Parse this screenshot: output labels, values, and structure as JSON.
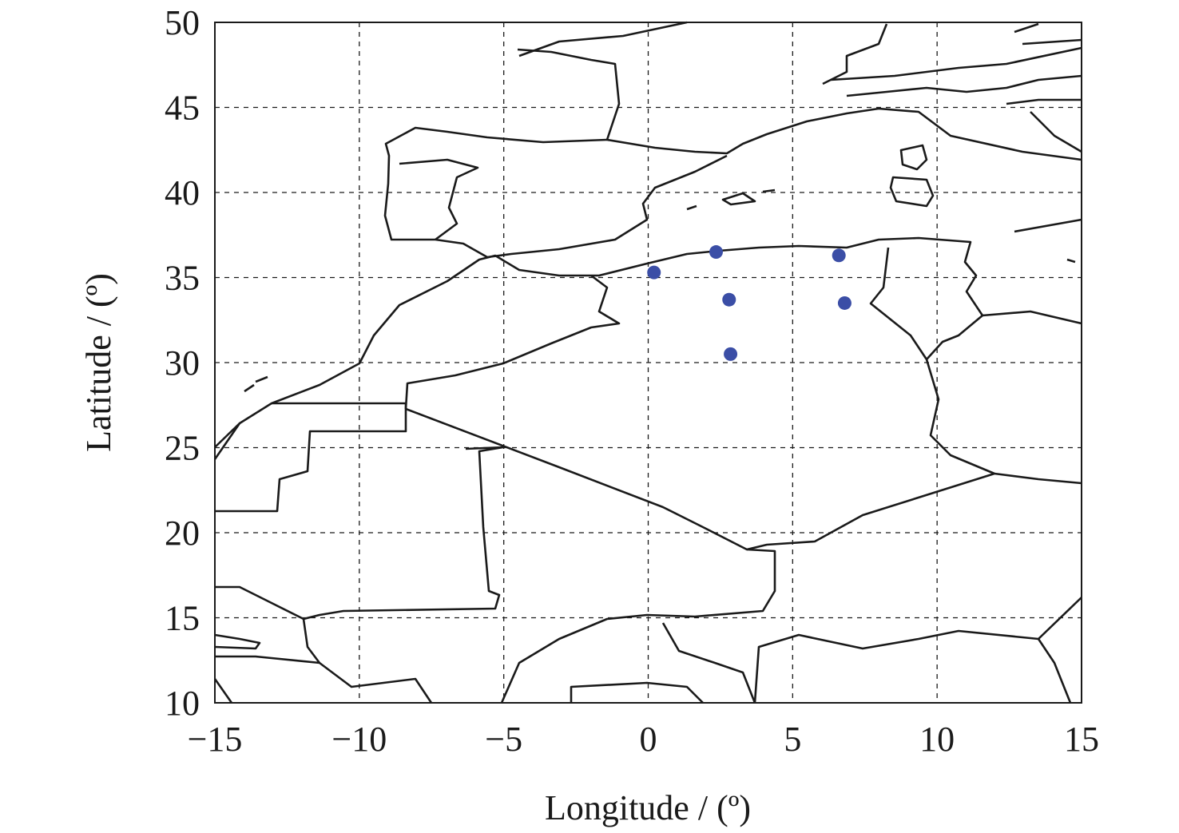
{
  "chart_data": {
    "type": "scatter",
    "xlabel": "Longitude / (º)",
    "ylabel": "Latitude / (º)",
    "xlim": [
      -15,
      15
    ],
    "ylim": [
      10,
      50
    ],
    "xticks": [
      "−15",
      "−10",
      "−5",
      "0",
      "5",
      "10",
      "15"
    ],
    "xtick_values": [
      -15,
      -10,
      -5,
      0,
      5,
      10,
      15
    ],
    "yticks": [
      "10",
      "15",
      "20",
      "25",
      "30",
      "35",
      "40",
      "45",
      "50"
    ],
    "ytick_values": [
      10,
      15,
      20,
      25,
      30,
      35,
      40,
      45,
      50
    ],
    "grid": true,
    "background": "coastlines and country borders",
    "marker_color": "#3b4ea6",
    "points": [
      {
        "lon": 0.2,
        "lat": 35.3
      },
      {
        "lon": 2.35,
        "lat": 36.5
      },
      {
        "lon": 2.8,
        "lat": 33.7
      },
      {
        "lon": 2.85,
        "lat": 30.5
      },
      {
        "lon": 6.6,
        "lat": 36.3
      },
      {
        "lon": 6.8,
        "lat": 33.5
      }
    ]
  }
}
